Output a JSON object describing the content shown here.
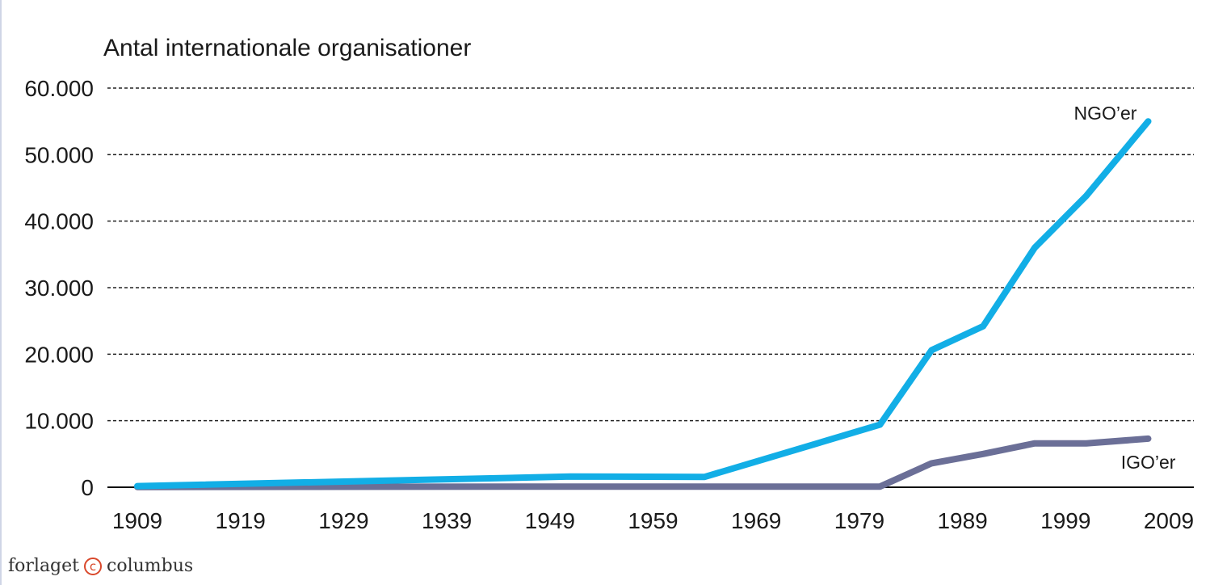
{
  "chart_data": {
    "type": "line",
    "title": "",
    "ylabel": "Antal internationale organisationer",
    "xlabel": "",
    "x_ticks": [
      "1909",
      "1919",
      "1929",
      "1939",
      "1949",
      "1959",
      "1969",
      "1979",
      "1989",
      "1999",
      "2009"
    ],
    "y_ticks": [
      "0",
      "10.000",
      "20.000",
      "30.000",
      "40.000",
      "50.000",
      "60.000"
    ],
    "xlim": [
      1909,
      2009
    ],
    "ylim": [
      0,
      60000
    ],
    "grid": "horizontal-dashed",
    "series": [
      {
        "name": "NGO’er",
        "color": "#12aee6",
        "points": [
          [
            1909,
            176
          ],
          [
            1951,
            1600
          ],
          [
            1964,
            1550
          ],
          [
            1981,
            9400
          ],
          [
            1986,
            20600
          ],
          [
            1991,
            24200
          ],
          [
            1996,
            36000
          ],
          [
            2001,
            43800
          ],
          [
            2007,
            55000
          ]
        ]
      },
      {
        "name": "IGO’er",
        "color": "#6b6f97",
        "points": [
          [
            1909,
            37
          ],
          [
            1951,
            100
          ],
          [
            1964,
            100
          ],
          [
            1981,
            100
          ],
          [
            1986,
            3600
          ],
          [
            1991,
            5000
          ],
          [
            1996,
            6600
          ],
          [
            2001,
            6600
          ],
          [
            2007,
            7300
          ]
        ]
      }
    ]
  },
  "publisher": {
    "left": "forlaget",
    "symbol": "c",
    "right": "columbus"
  }
}
